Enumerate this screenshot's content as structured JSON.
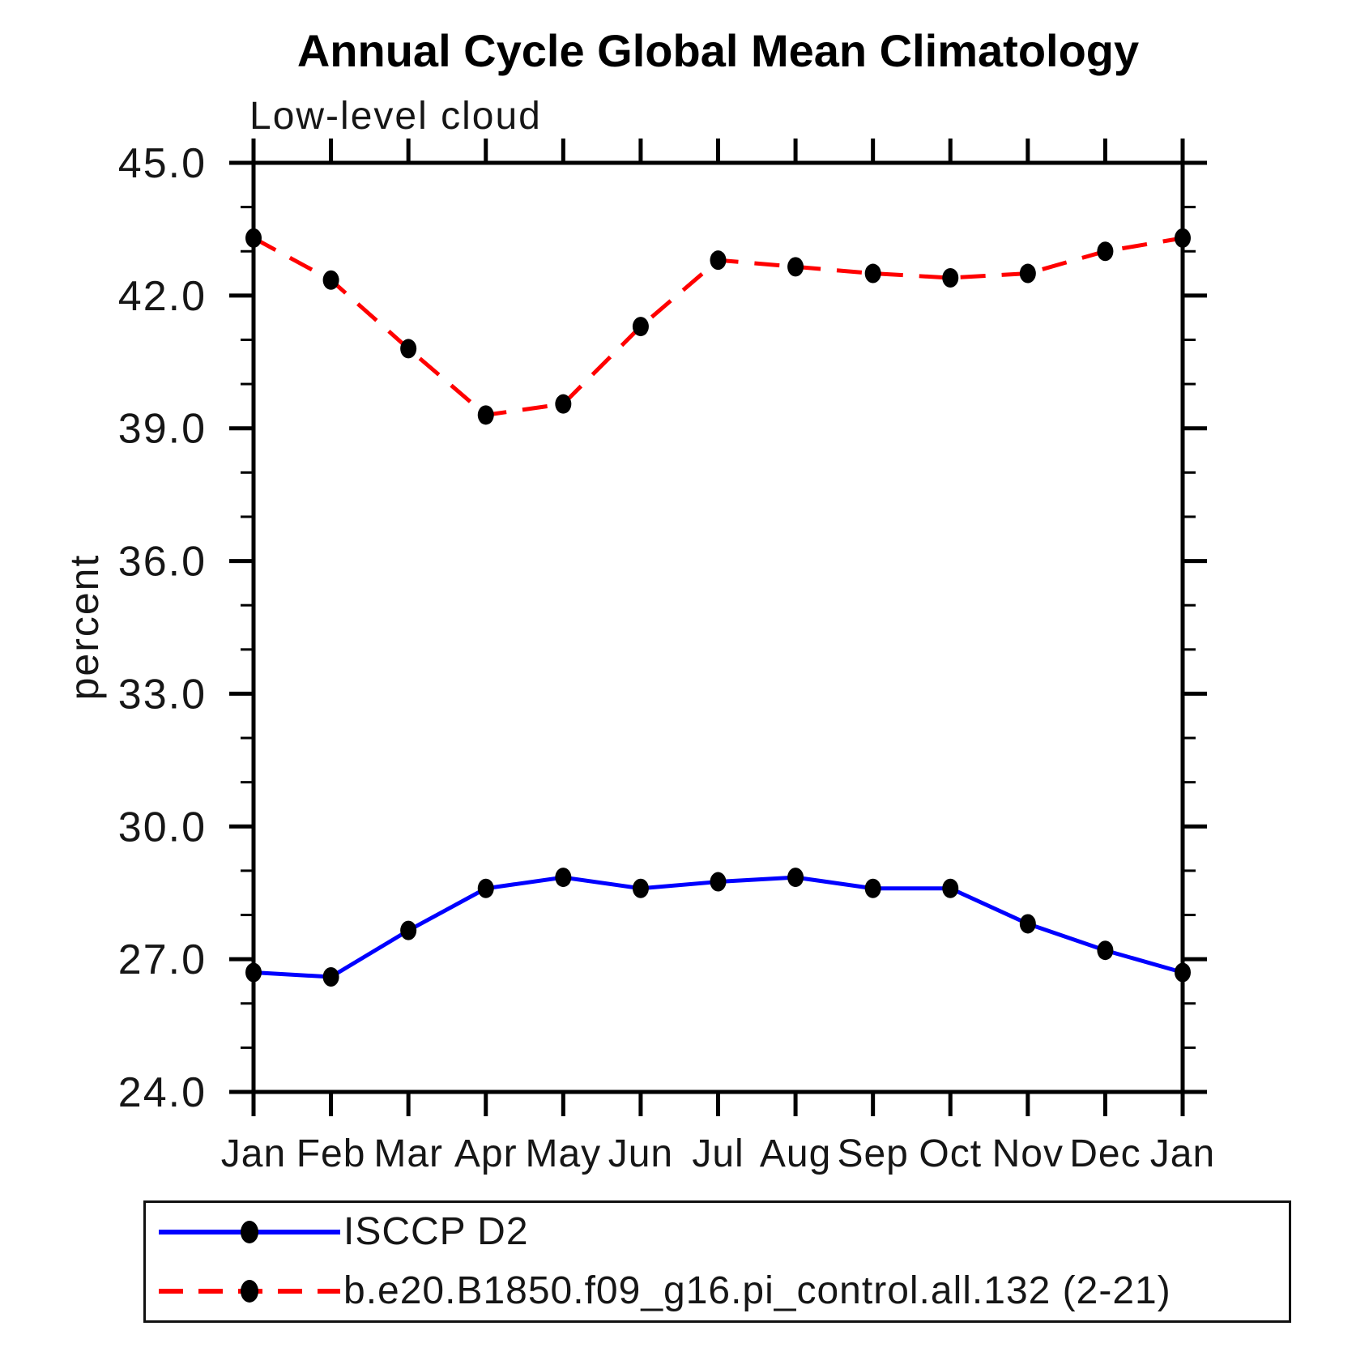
{
  "chart_data": {
    "type": "line",
    "title": "Annual Cycle Global Mean Climatology",
    "subtitle": "Low-level cloud",
    "ylabel": "percent",
    "xlabel": "",
    "categories": [
      "Jan",
      "Feb",
      "Mar",
      "Apr",
      "May",
      "Jun",
      "Jul",
      "Aug",
      "Sep",
      "Oct",
      "Nov",
      "Dec",
      "Jan"
    ],
    "ylim": [
      24.0,
      45.0
    ],
    "ytick_major_interval": 3.0,
    "ytick_minor_interval": 1.0,
    "ytick_labels": [
      "24.0",
      "27.0",
      "30.0",
      "33.0",
      "36.0",
      "39.0",
      "42.0",
      "45.0"
    ],
    "grid": false,
    "legend_position": "bottom-left",
    "axis_color": "#000000",
    "series": [
      {
        "name": "ISCCP D2",
        "color": "#0000ff",
        "line_style": "solid",
        "marker": "filled-circle",
        "marker_color": "#000000",
        "values": [
          26.7,
          26.6,
          27.65,
          28.6,
          28.85,
          28.6,
          28.75,
          28.85,
          28.6,
          28.6,
          27.8,
          27.2,
          26.7
        ]
      },
      {
        "name": "b.e20.B1850.f09_g16.pi_control.all.132 (2-21)",
        "color": "#ff0000",
        "line_style": "dashed",
        "marker": "filled-circle",
        "marker_color": "#000000",
        "values": [
          43.3,
          42.35,
          40.8,
          39.3,
          39.55,
          41.3,
          42.8,
          42.65,
          42.5,
          42.4,
          42.5,
          43.0,
          43.3
        ]
      }
    ]
  }
}
